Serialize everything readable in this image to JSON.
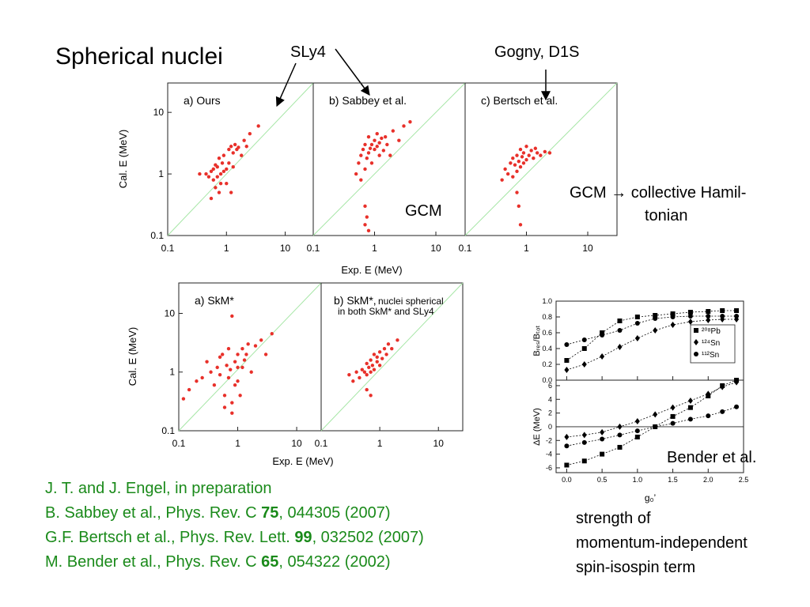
{
  "title": "Spherical nuclei",
  "labels": {
    "sly4": "SLy4",
    "gogny": "Gogny, D1S",
    "gcm": "GCM",
    "gcm_note": [
      "GCM → collective Hamil-",
      "tonian"
    ],
    "bender": "Bender et al.",
    "strength": [
      "strength of",
      "momentum-independent",
      "spin-isospin term"
    ]
  },
  "references": [
    [
      {
        "text": "J. T. and J. Engel, in preparation"
      }
    ],
    [
      {
        "text": "B. Sabbey et al., Phys. Rev. C "
      },
      {
        "text": "75",
        "bold": true
      },
      {
        "text": ", 044305 (2007)"
      }
    ],
    [
      {
        "text": "G.F. Bertsch et al., Phys. Rev. Lett. "
      },
      {
        "text": "99",
        "bold": true
      },
      {
        "text": ", 032502 (2007)"
      }
    ],
    [
      {
        "text": "M. Bender et al., Phys. Rev. C "
      },
      {
        "text": "65",
        "bold": true
      },
      {
        "text": ", 054322 (2002)"
      }
    ]
  ],
  "chart_data": [
    {
      "type": "scatter",
      "title": "a) Ours",
      "ylabel": "Cal. E (MeV)",
      "log_x": true,
      "log_y": true,
      "color": "#e8302a",
      "xlim": [
        0.1,
        30
      ],
      "ylim": [
        0.1,
        30
      ],
      "xticks": [
        0.1,
        1,
        10
      ],
      "yticks": [
        0.1,
        1,
        10
      ],
      "x": [
        0.35,
        0.45,
        0.5,
        0.55,
        0.6,
        0.6,
        0.65,
        0.7,
        0.7,
        0.75,
        0.8,
        0.8,
        0.85,
        0.9,
        0.9,
        1.0,
        1.0,
        1.1,
        1.1,
        1.2,
        1.3,
        1.3,
        1.4,
        1.5,
        1.6,
        1.8,
        2.0,
        2.2,
        2.5,
        3.5,
        0.55,
        0.65,
        0.75,
        1.2
      ],
      "values": [
        1.0,
        1.0,
        0.9,
        1.1,
        0.8,
        1.2,
        0.6,
        0.9,
        1.3,
        0.5,
        1.0,
        0.7,
        1.5,
        1.1,
        2.0,
        1.2,
        0.7,
        2.5,
        1.5,
        2.8,
        2.2,
        1.3,
        3.0,
        2.5,
        2.7,
        2.0,
        3.5,
        2.8,
        4.5,
        6.0,
        0.4,
        1.4,
        1.8,
        0.5
      ]
    },
    {
      "type": "scatter",
      "title": "b) Sabbey et al.",
      "xlabel": "Exp. E (MeV)",
      "log_x": true,
      "log_y": true,
      "color": "#e8302a",
      "xlim": [
        0.1,
        30
      ],
      "ylim": [
        0.1,
        30
      ],
      "xticks": [
        0.1,
        1,
        10
      ],
      "x": [
        0.5,
        0.55,
        0.6,
        0.6,
        0.65,
        0.7,
        0.7,
        0.7,
        0.75,
        0.8,
        0.8,
        0.85,
        0.9,
        0.9,
        1.0,
        1.0,
        1.1,
        1.1,
        1.2,
        1.2,
        1.3,
        1.4,
        1.5,
        1.6,
        1.8,
        2.0,
        2.5,
        3.0,
        3.8,
        0.7,
        0.75,
        0.8
      ],
      "values": [
        1.0,
        1.5,
        2.0,
        0.8,
        2.5,
        1.2,
        3.0,
        0.3,
        1.8,
        2.2,
        4.0,
        2.6,
        3.0,
        1.5,
        2.5,
        3.5,
        2.8,
        4.5,
        3.2,
        2.0,
        3.8,
        2.4,
        4.0,
        3.0,
        2.0,
        5.0,
        3.5,
        6.0,
        7.0,
        0.15,
        0.2,
        0.12
      ]
    },
    {
      "type": "scatter",
      "title": "c) Bertsch et al.",
      "log_x": true,
      "log_y": true,
      "color": "#e8302a",
      "xlim": [
        0.1,
        30
      ],
      "ylim": [
        0.1,
        30
      ],
      "xticks": [
        0.1,
        1,
        10
      ],
      "x": [
        0.4,
        0.45,
        0.5,
        0.55,
        0.6,
        0.6,
        0.65,
        0.7,
        0.7,
        0.75,
        0.8,
        0.8,
        0.85,
        0.9,
        0.9,
        1.0,
        1.0,
        1.1,
        1.2,
        1.3,
        1.4,
        1.5,
        1.7,
        2.0,
        2.4,
        0.75,
        0.8,
        0.7
      ],
      "values": [
        0.8,
        1.2,
        1.0,
        1.5,
        0.9,
        1.8,
        1.4,
        1.1,
        2.0,
        1.6,
        1.3,
        2.5,
        1.9,
        1.5,
        2.2,
        1.7,
        2.8,
        2.0,
        2.4,
        1.8,
        2.6,
        2.2,
        2.0,
        2.3,
        2.2,
        0.3,
        0.15,
        0.5
      ]
    },
    {
      "type": "scatter",
      "title": "a) SkM*",
      "ylabel": "Cal. E (MeV)",
      "xlabel": "Exp. E (MeV)",
      "log_x": true,
      "log_y": true,
      "color": "#e8302a",
      "xlim": [
        0.1,
        26
      ],
      "ylim": [
        0.1,
        33
      ],
      "xticks": [
        0.1,
        1,
        10
      ],
      "yticks": [
        0.1,
        1,
        10
      ],
      "x": [
        0.12,
        0.15,
        0.2,
        0.25,
        0.3,
        0.35,
        0.4,
        0.45,
        0.5,
        0.55,
        0.6,
        0.65,
        0.7,
        0.7,
        0.75,
        0.8,
        0.8,
        0.9,
        0.9,
        1.0,
        1.0,
        1.1,
        1.2,
        1.3,
        1.4,
        1.5,
        1.7,
        2.0,
        2.5,
        3.0,
        3.8,
        0.8,
        0.6,
        1.0,
        0.5,
        1.2
      ],
      "values": [
        0.35,
        0.5,
        0.7,
        0.8,
        1.5,
        1.0,
        0.6,
        1.2,
        0.9,
        2.0,
        0.4,
        1.3,
        0.8,
        2.5,
        1.1,
        9.0,
        0.3,
        1.5,
        0.6,
        2.0,
        1.2,
        0.4,
        2.5,
        1.6,
        2.0,
        3.0,
        1.0,
        2.8,
        3.5,
        2.0,
        4.5,
        0.2,
        0.25,
        0.7,
        1.8,
        1.2
      ]
    },
    {
      "type": "scatter",
      "title": "b) SkM*,",
      "subtitle": [
        "nuclei spherical",
        "in both SkM* and SLy4"
      ],
      "log_x": true,
      "log_y": true,
      "color": "#e8302a",
      "xlim": [
        0.1,
        26
      ],
      "ylim": [
        0.1,
        33
      ],
      "xticks": [
        0.1,
        1,
        10
      ],
      "x": [
        0.3,
        0.35,
        0.4,
        0.45,
        0.5,
        0.55,
        0.6,
        0.6,
        0.65,
        0.7,
        0.7,
        0.75,
        0.8,
        0.8,
        0.9,
        0.9,
        1.0,
        1.0,
        1.1,
        1.2,
        1.3,
        1.4,
        1.6,
        2.0,
        0.6,
        0.7
      ],
      "values": [
        0.9,
        0.7,
        1.0,
        0.8,
        1.1,
        1.0,
        0.9,
        1.4,
        1.2,
        1.0,
        1.6,
        1.3,
        1.1,
        2.0,
        1.5,
        1.8,
        1.3,
        2.2,
        1.7,
        2.5,
        2.0,
        3.0,
        2.5,
        3.5,
        0.5,
        0.4
      ]
    },
    {
      "type": "line",
      "ylabel": "Bᵣₑₛ/Bₜₒₜ",
      "legend": "right",
      "xlim": [
        -0.15,
        2.5
      ],
      "ylim": [
        0,
        1
      ],
      "yticks": [
        {
          "value": 0,
          "label": "0.0"
        },
        0.2,
        0.4,
        0.6,
        0.8,
        {
          "value": 1,
          "label": "1.0"
        }
      ],
      "x": [
        0,
        0.25,
        0.5,
        0.75,
        1.0,
        1.25,
        1.5,
        1.75,
        2.0,
        2.2,
        2.4
      ],
      "series": [
        {
          "name": "²⁰⁸Pb",
          "color": "#000000",
          "marker": "square",
          "values": [
            0.25,
            0.4,
            0.6,
            0.75,
            0.8,
            0.82,
            0.84,
            0.86,
            0.87,
            0.88,
            0.88
          ]
        },
        {
          "name": "¹²⁴Sn",
          "color": "#000000",
          "marker": "diamond",
          "values": [
            0.13,
            0.2,
            0.3,
            0.42,
            0.53,
            0.63,
            0.7,
            0.74,
            0.76,
            0.77,
            0.77
          ]
        },
        {
          "name": "¹¹²Sn",
          "color": "#000000",
          "marker": "circle",
          "values": [
            0.45,
            0.51,
            0.57,
            0.63,
            0.72,
            0.78,
            0.8,
            0.81,
            0.81,
            0.81,
            0.81
          ]
        }
      ]
    },
    {
      "type": "line",
      "ylabel": "ΔE (MeV)",
      "xlabel": "g₀’",
      "xlim": [
        -0.15,
        2.5
      ],
      "ylim": [
        -6.7,
        6.8
      ],
      "xticks": [
        {
          "value": 0,
          "label": "0.0"
        },
        0.5,
        {
          "value": 1,
          "label": "1.0"
        },
        1.5,
        {
          "value": 2,
          "label": "2.0"
        },
        2.5
      ],
      "yticks": [
        -6,
        -4,
        -2,
        0,
        2,
        4,
        6
      ],
      "x": [
        0,
        0.25,
        0.5,
        0.75,
        1.0,
        1.25,
        1.5,
        1.75,
        2.0,
        2.2,
        2.4
      ],
      "series": [
        {
          "color": "#000000",
          "marker": "square",
          "values": [
            -5.6,
            -5,
            -4,
            -3,
            -1.5,
            0,
            1.5,
            2.8,
            4.5,
            6,
            6.8
          ]
        },
        {
          "color": "#000000",
          "marker": "diamond",
          "values": [
            -1.5,
            -1.2,
            -0.8,
            0,
            0.8,
            1.8,
            2.8,
            3.8,
            4.8,
            5.8,
            6.5
          ]
        },
        {
          "color": "#000000",
          "marker": "circle",
          "values": [
            -2.8,
            -2.3,
            -1.8,
            -1.2,
            -0.6,
            0,
            0.5,
            1.1,
            1.6,
            2.2,
            2.9
          ]
        }
      ]
    }
  ]
}
